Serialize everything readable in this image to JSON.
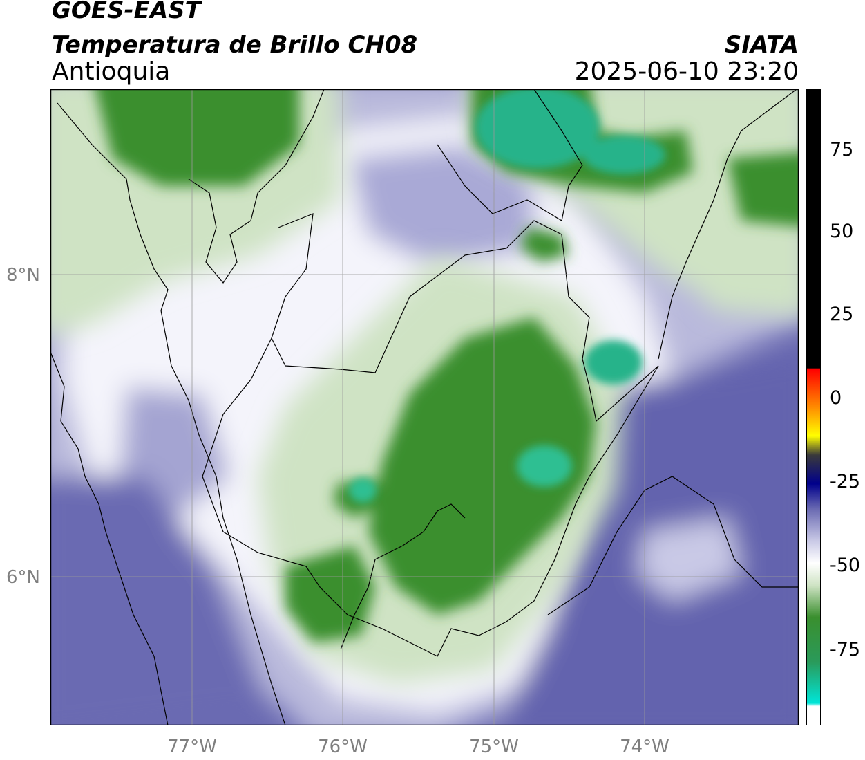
{
  "header": {
    "satellite": "GOES-EAST",
    "product": "Temperatura de Brillo CH08",
    "region": "Antioquia",
    "organization": "SIATA",
    "timestamp": "2025-06-10 23:20"
  },
  "map": {
    "lat_labels": [
      "8°N",
      "6°N"
    ],
    "lon_labels": [
      "77°W",
      "76°W",
      "75°W",
      "74°W"
    ],
    "colors": {
      "purple": "#5a5aa8",
      "lavender": "#b8b8dc",
      "white": "#ffffff",
      "light_green": "#cfe3c4",
      "green": "#3a8f2e",
      "teal": "#27b38a",
      "border": "#000000",
      "grid": "#9a9a9a"
    }
  },
  "colorbar": {
    "tick_labels": [
      "75",
      "50",
      "25",
      "0",
      "-25",
      "-50",
      "-75"
    ],
    "colors": [
      "#000000",
      "#ff0000",
      "#ffa500",
      "#ffff00",
      "#00008b",
      "#ffffff",
      "#228b22",
      "#00e5d8"
    ]
  }
}
